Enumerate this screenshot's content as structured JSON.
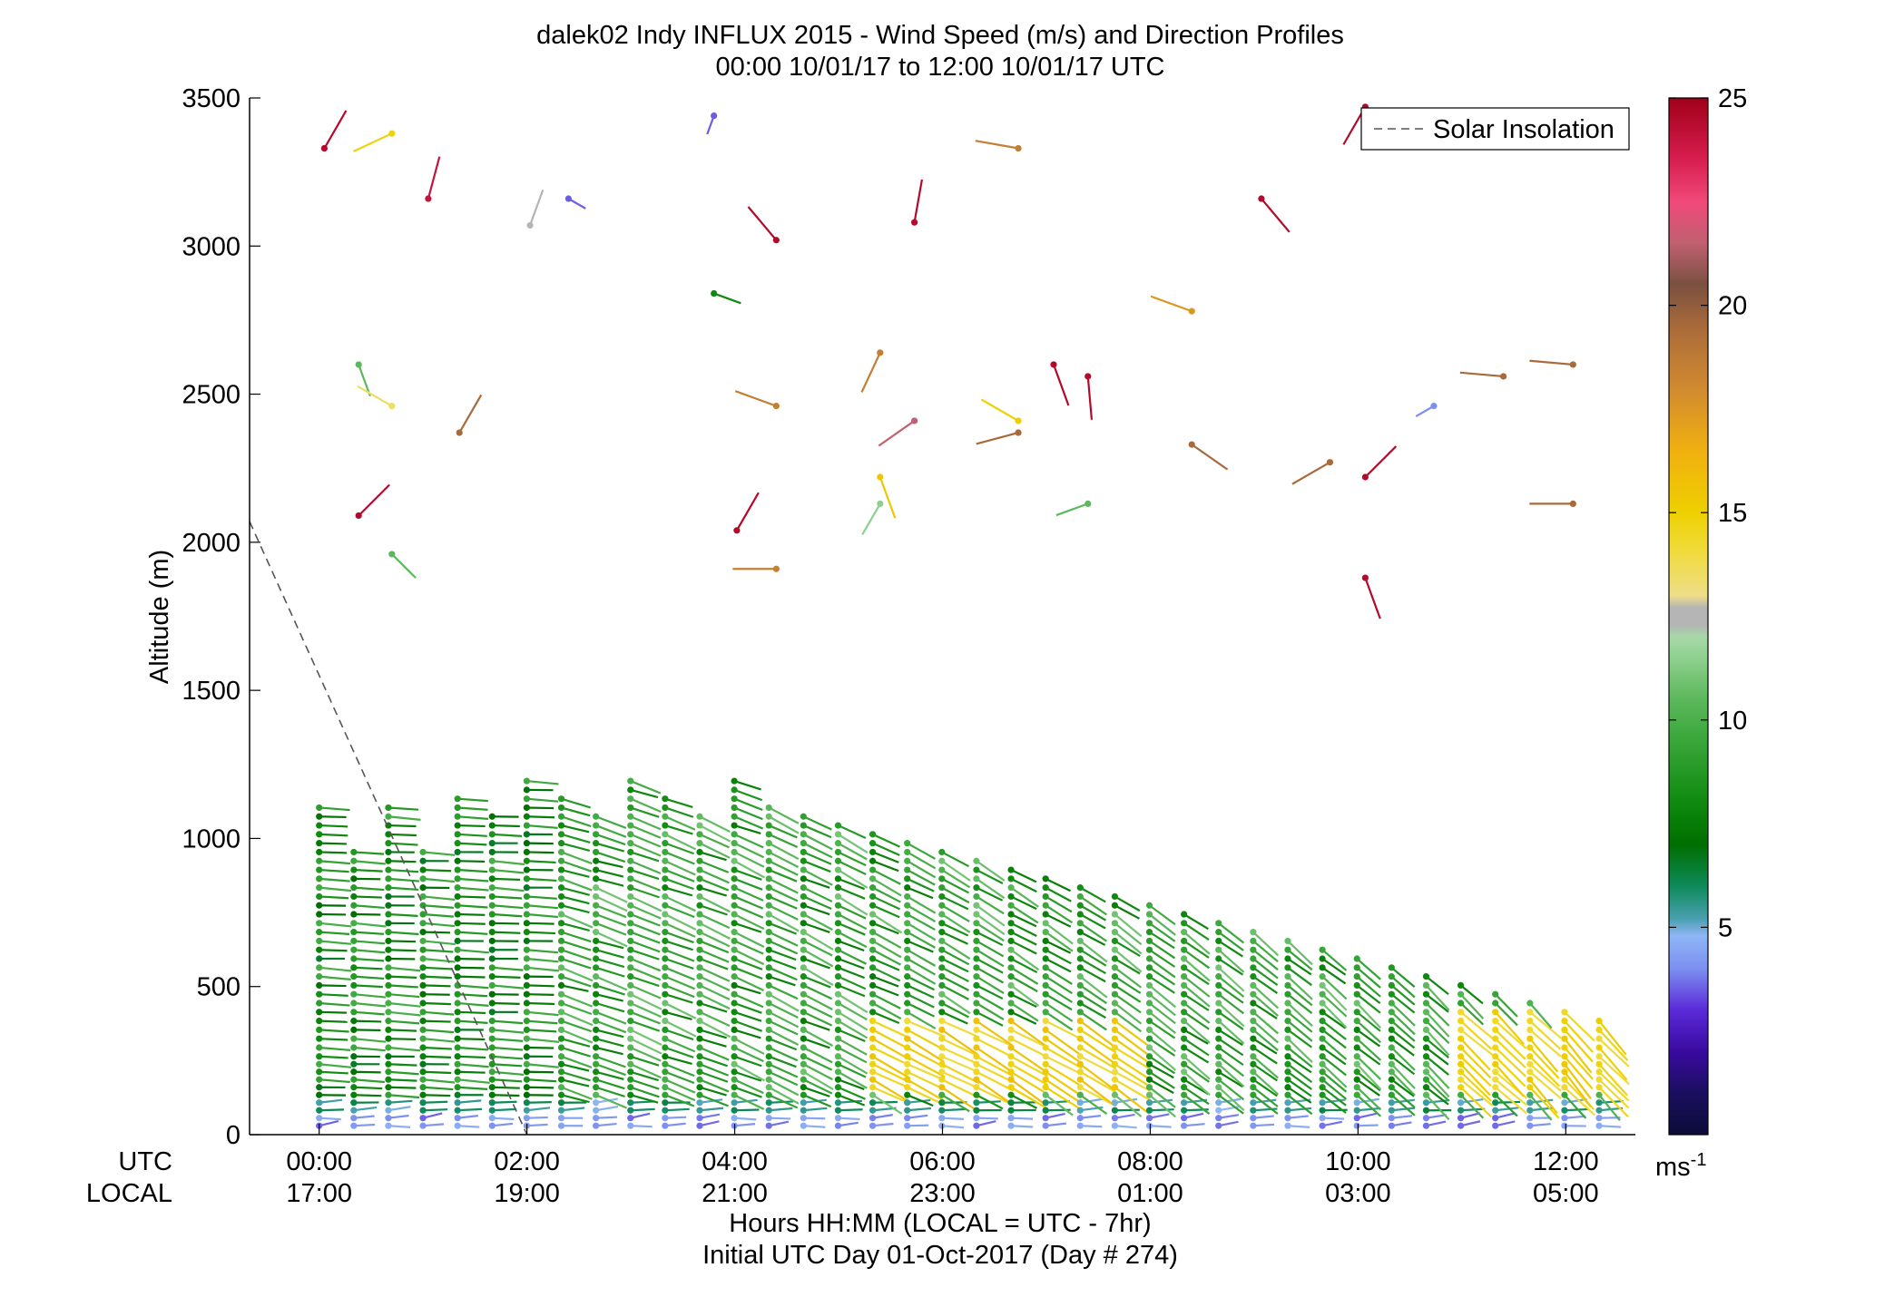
{
  "chart_data": {
    "type": "scatter",
    "title": "dalek02 Indy INFLUX 2015 - Wind Speed (m/s) and Direction Profiles",
    "subtitle": "00:00 10/01/17 to 12:00 10/01/17  UTC",
    "ylabel": "Altitude (m)",
    "xlabel": "Hours HH:MM  (LOCAL = UTC - 7hr)",
    "xlabel2": "Initial UTC Day 01-Oct-2017 (Day # 274)",
    "ylim": [
      0,
      3500
    ],
    "xlim_hours": [
      -0.67,
      12.67
    ],
    "yticks": [
      0,
      500,
      1000,
      1500,
      2000,
      2500,
      3000,
      3500
    ],
    "xticks_hours": [
      0,
      2,
      4,
      6,
      8,
      10,
      12
    ],
    "row_label_utc": "UTC",
    "row_label_local": "LOCAL",
    "utc_tick_labels": [
      "00:00",
      "02:00",
      "04:00",
      "06:00",
      "08:00",
      "10:00",
      "12:00"
    ],
    "local_tick_labels": [
      "17:00",
      "19:00",
      "21:00",
      "23:00",
      "01:00",
      "03:00",
      "05:00"
    ],
    "legend": {
      "entries": [
        "Solar Insolation"
      ],
      "location": "top-right"
    },
    "colorbar": {
      "range": [
        0,
        25
      ],
      "ticks": [
        5,
        10,
        15,
        20,
        25
      ],
      "unit_label": "ms",
      "unit_exponent": "-1"
    },
    "solar_insolation": {
      "style": "dashed",
      "color": "#555555",
      "x_hours": [
        -0.67,
        2.0
      ],
      "altitude": [
        2070,
        0
      ]
    },
    "profile_time_step_hours": 0.333,
    "upper_points": [
      {
        "t": 0.05,
        "alt": 3330,
        "ws": 24.5,
        "dir": 30
      },
      {
        "t": 0.7,
        "alt": 3380,
        "ws": 14.8,
        "dir": 245
      },
      {
        "t": 1.05,
        "alt": 3160,
        "ws": 24.0,
        "dir": 15
      },
      {
        "t": 0.38,
        "alt": 2600,
        "ws": 10.5,
        "dir": 160
      },
      {
        "t": 0.7,
        "alt": 2460,
        "ws": 13.5,
        "dir": 300
      },
      {
        "t": 1.35,
        "alt": 2370,
        "ws": 19.5,
        "dir": 30
      },
      {
        "t": 0.38,
        "alt": 2090,
        "ws": 24.5,
        "dir": 45
      },
      {
        "t": 0.7,
        "alt": 1960,
        "ws": 10.5,
        "dir": 135
      },
      {
        "t": 2.03,
        "alt": 3070,
        "ws": 12.5,
        "dir": 20
      },
      {
        "t": 2.4,
        "alt": 3160,
        "ws": 3.5,
        "dir": 120
      },
      {
        "t": 3.8,
        "alt": 3440,
        "ws": 3.5,
        "dir": 200
      },
      {
        "t": 3.8,
        "alt": 2840,
        "ws": 8.0,
        "dir": 110
      },
      {
        "t": 4.4,
        "alt": 3020,
        "ws": 24.5,
        "dir": 320
      },
      {
        "t": 4.4,
        "alt": 2460,
        "ws": 18.5,
        "dir": 290
      },
      {
        "t": 4.02,
        "alt": 2040,
        "ws": 24.5,
        "dir": 30
      },
      {
        "t": 4.4,
        "alt": 1910,
        "ws": 18.5,
        "dir": 270
      },
      {
        "t": 5.73,
        "alt": 3080,
        "ws": 24.5,
        "dir": 10
      },
      {
        "t": 5.4,
        "alt": 2640,
        "ws": 18.5,
        "dir": 205
      },
      {
        "t": 5.73,
        "alt": 2410,
        "ws": 21.5,
        "dir": 235
      },
      {
        "t": 5.4,
        "alt": 2220,
        "ws": 15.5,
        "dir": 160
      },
      {
        "t": 5.4,
        "alt": 2130,
        "ws": 11.5,
        "dir": 210
      },
      {
        "t": 6.73,
        "alt": 3330,
        "ws": 18.5,
        "dir": 280
      },
      {
        "t": 7.07,
        "alt": 2600,
        "ws": 24.5,
        "dir": 160
      },
      {
        "t": 7.4,
        "alt": 2560,
        "ws": 24.5,
        "dir": 175
      },
      {
        "t": 6.73,
        "alt": 2410,
        "ws": 15.0,
        "dir": 300
      },
      {
        "t": 6.73,
        "alt": 2370,
        "ws": 19.5,
        "dir": 255
      },
      {
        "t": 7.4,
        "alt": 2130,
        "ws": 10.5,
        "dir": 250
      },
      {
        "t": 8.4,
        "alt": 2780,
        "ws": 17.5,
        "dir": 290
      },
      {
        "t": 8.4,
        "alt": 2330,
        "ws": 19.5,
        "dir": 125
      },
      {
        "t": 9.07,
        "alt": 3160,
        "ws": 24.5,
        "dir": 140
      },
      {
        "t": 9.73,
        "alt": 2270,
        "ws": 19.5,
        "dir": 240
      },
      {
        "t": 10.07,
        "alt": 3470,
        "ws": 24.5,
        "dir": 210
      },
      {
        "t": 10.07,
        "alt": 2220,
        "ws": 24.5,
        "dir": 45
      },
      {
        "t": 10.07,
        "alt": 1880,
        "ws": 24.5,
        "dir": 160
      },
      {
        "t": 10.73,
        "alt": 2460,
        "ws": 4.0,
        "dir": 240
      },
      {
        "t": 11.4,
        "alt": 2560,
        "ws": 19.5,
        "dir": 275
      },
      {
        "t": 12.07,
        "alt": 2600,
        "ws": 19.5,
        "dir": 275
      },
      {
        "t": 12.07,
        "alt": 2130,
        "ws": 19.5,
        "dir": 270
      }
    ]
  }
}
